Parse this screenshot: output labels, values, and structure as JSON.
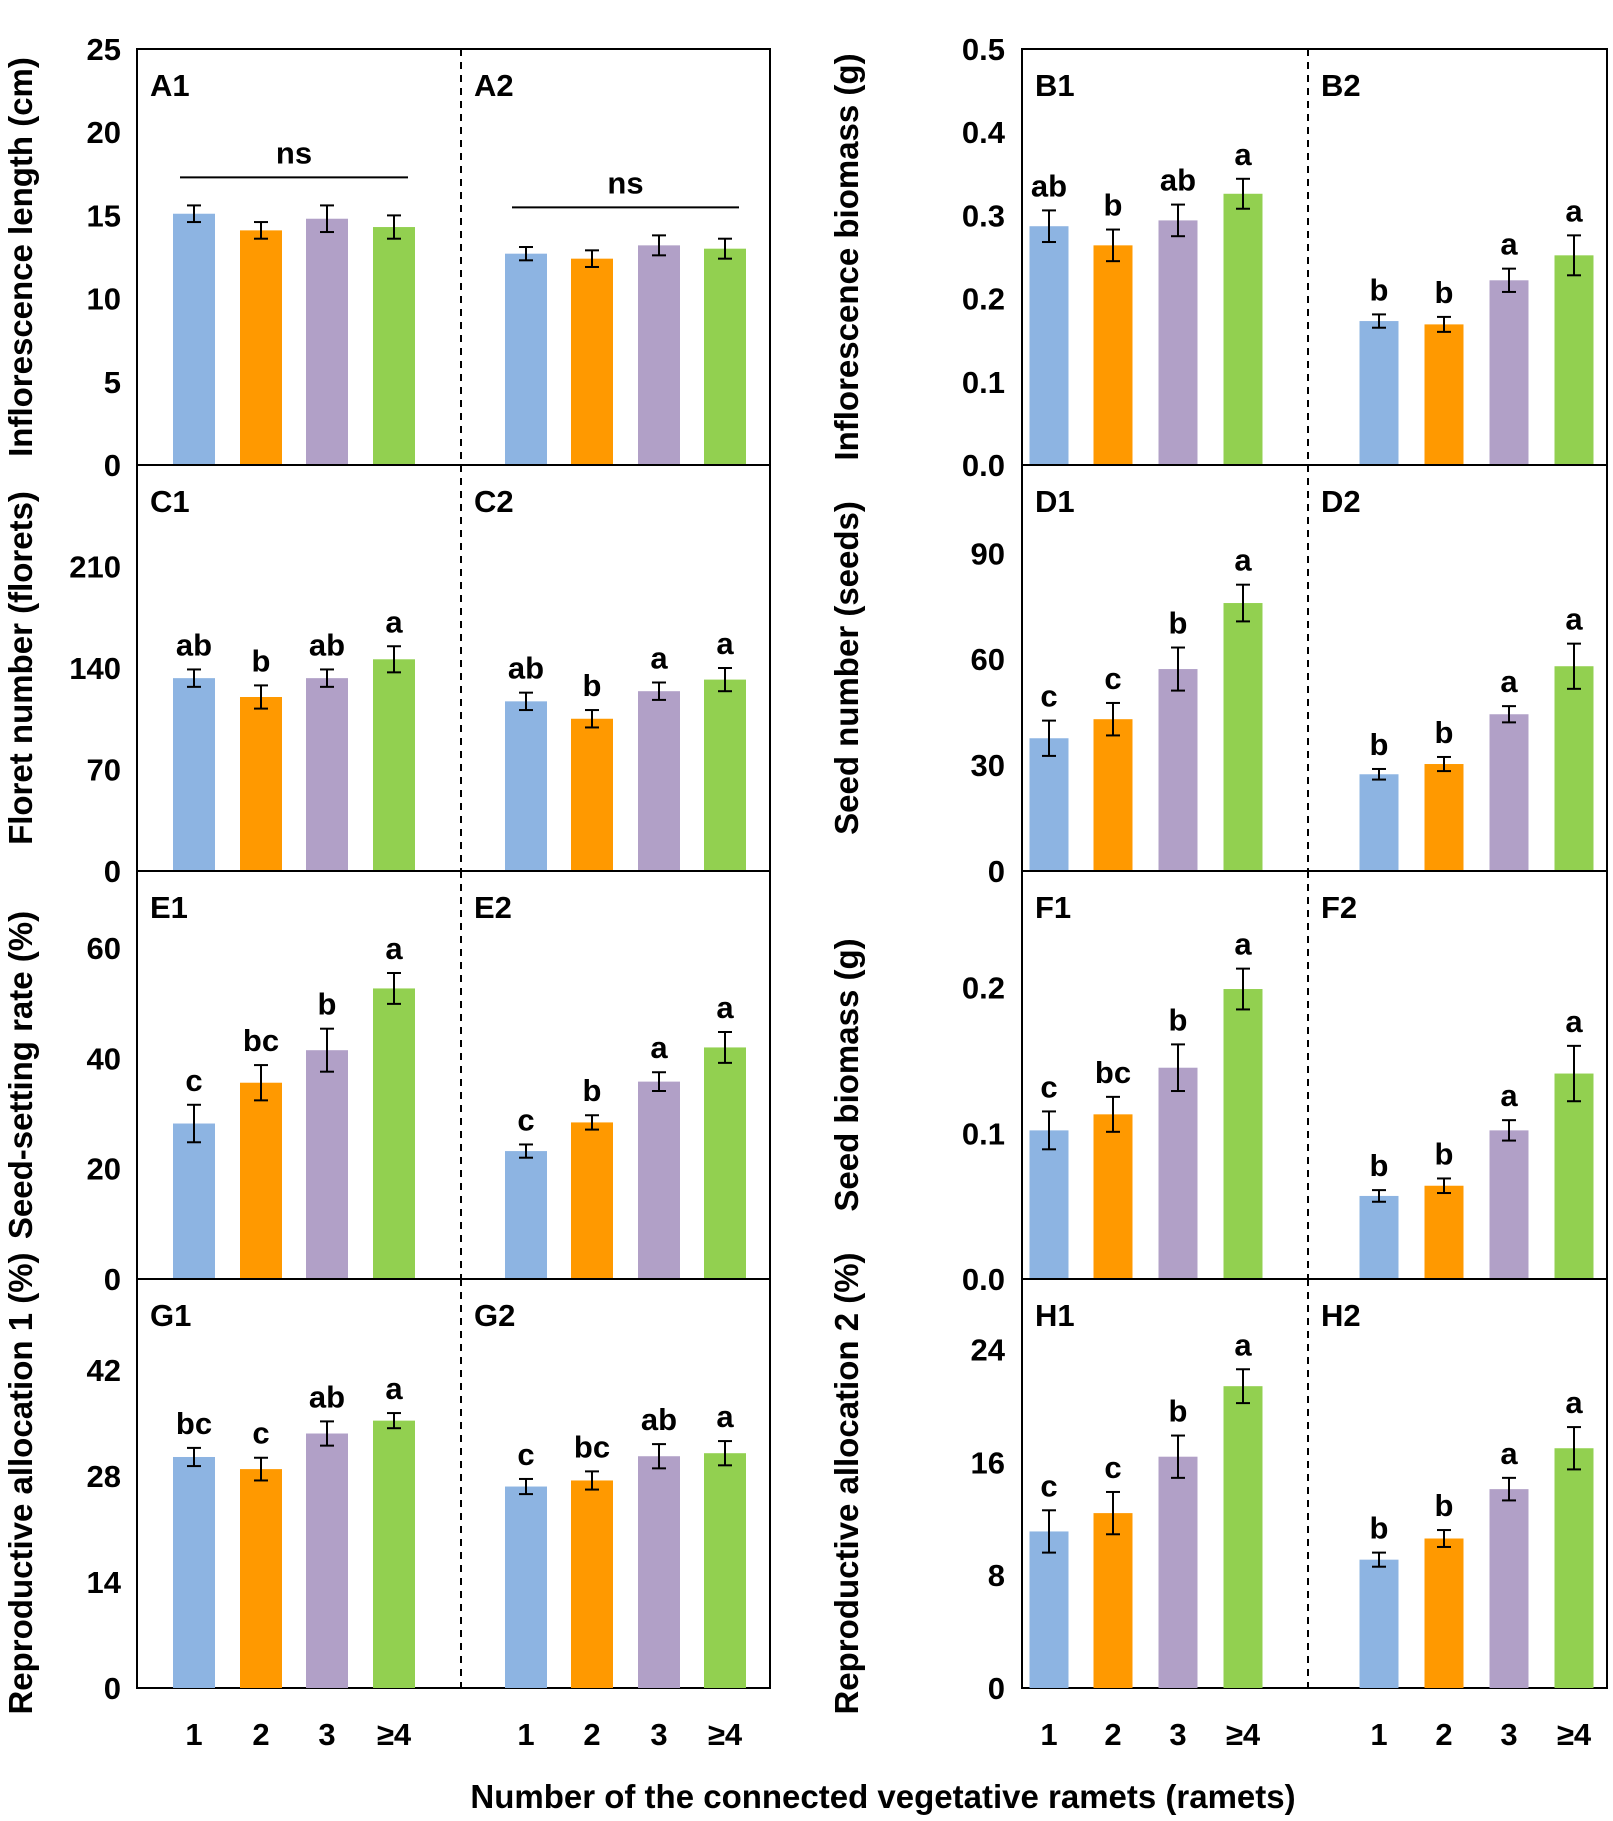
{
  "figure": {
    "xlabel": "Number of the connected vegetative ramets (ramets)",
    "categories": [
      "1",
      "2",
      "3",
      "≥4"
    ],
    "colors": [
      "#8DB4E2",
      "#FF9900",
      "#B1A0C7",
      "#92D050"
    ]
  },
  "chart_data": [
    {
      "type": "bar",
      "ylabel": "Inflorescence length (cm)",
      "ylim": [
        0,
        25
      ],
      "yticks": [
        "0",
        "5",
        "10",
        "15",
        "20",
        "25"
      ],
      "groups": [
        {
          "label": "A1",
          "categories": [
            "1",
            "2",
            "3",
            "≥4"
          ],
          "values": [
            15.1,
            14.1,
            14.8,
            14.3
          ],
          "errors": [
            0.5,
            0.5,
            0.8,
            0.7
          ],
          "bracket_label": "ns"
        },
        {
          "label": "A2",
          "categories": [
            "1",
            "2",
            "3",
            "≥4"
          ],
          "values": [
            12.7,
            12.4,
            13.2,
            13.0
          ],
          "errors": [
            0.4,
            0.5,
            0.6,
            0.6
          ],
          "bracket_label": "ns"
        }
      ]
    },
    {
      "type": "bar",
      "ylabel": "Inflorescence biomass (g)",
      "ylim": [
        0,
        0.5
      ],
      "yticks": [
        "0.0",
        "0.1",
        "0.2",
        "0.3",
        "0.4",
        "0.5"
      ],
      "groups": [
        {
          "label": "B1",
          "categories": [
            "1",
            "2",
            "3",
            "≥4"
          ],
          "values": [
            0.287,
            0.264,
            0.294,
            0.326
          ],
          "errors": [
            0.019,
            0.019,
            0.019,
            0.018
          ],
          "letters": [
            "ab",
            "b",
            "ab",
            "a"
          ]
        },
        {
          "label": "B2",
          "categories": [
            "1",
            "2",
            "3",
            "≥4"
          ],
          "values": [
            0.173,
            0.169,
            0.222,
            0.252
          ],
          "errors": [
            0.008,
            0.009,
            0.014,
            0.024
          ],
          "letters": [
            "b",
            "b",
            "a",
            "a"
          ]
        }
      ]
    },
    {
      "type": "bar",
      "ylabel": "Floret number (florets)",
      "ylim": [
        0,
        280
      ],
      "yticks": [
        "0",
        "70",
        "140",
        "210"
      ],
      "groups": [
        {
          "label": "C1",
          "categories": [
            "1",
            "2",
            "3",
            "≥4"
          ],
          "values": [
            133,
            120,
            133,
            146
          ],
          "errors": [
            6,
            8,
            6,
            9
          ],
          "letters": [
            "ab",
            "b",
            "ab",
            "a"
          ]
        },
        {
          "label": "C2",
          "categories": [
            "1",
            "2",
            "3",
            "≥4"
          ],
          "values": [
            117,
            105,
            124,
            132
          ],
          "errors": [
            6,
            6,
            6,
            8
          ],
          "letters": [
            "ab",
            "b",
            "a",
            "a"
          ]
        }
      ]
    },
    {
      "type": "bar",
      "ylabel": "Seed number (seeds)",
      "ylim": [
        0,
        115
      ],
      "yticks": [
        "0",
        "30",
        "60",
        "90"
      ],
      "groups": [
        {
          "label": "D1",
          "categories": [
            "1",
            "2",
            "3",
            "≥4"
          ],
          "values": [
            37.6,
            43.0,
            57.2,
            75.9
          ],
          "errors": [
            5.0,
            4.6,
            6.1,
            5.2
          ],
          "letters": [
            "c",
            "c",
            "b",
            "a"
          ]
        },
        {
          "label": "D2",
          "categories": [
            "1",
            "2",
            "3",
            "≥4"
          ],
          "values": [
            27.4,
            30.3,
            44.4,
            58.0
          ],
          "errors": [
            1.5,
            2.0,
            2.3,
            6.4
          ],
          "letters": [
            "b",
            "b",
            "a",
            "a"
          ]
        }
      ]
    },
    {
      "type": "bar",
      "ylabel": "Seed-setting rate (%)",
      "ylim": [
        0,
        74
      ],
      "yticks": [
        "0",
        "20",
        "40",
        "60"
      ],
      "groups": [
        {
          "label": "E1",
          "categories": [
            "1",
            "2",
            "3",
            "≥4"
          ],
          "values": [
            28.2,
            35.6,
            41.5,
            52.7
          ],
          "errors": [
            3.4,
            3.2,
            3.9,
            2.8
          ],
          "letters": [
            "c",
            "bc",
            "b",
            "a"
          ]
        },
        {
          "label": "E2",
          "categories": [
            "1",
            "2",
            "3",
            "≥4"
          ],
          "values": [
            23.2,
            28.4,
            35.8,
            42.0
          ],
          "errors": [
            1.2,
            1.3,
            1.7,
            2.8
          ],
          "letters": [
            "c",
            "b",
            "a",
            "a"
          ]
        }
      ]
    },
    {
      "type": "bar",
      "ylabel": "Seed biomass (g)",
      "ylim": [
        0,
        0.28
      ],
      "yticks": [
        "0.0",
        "0.1",
        "0.2"
      ],
      "groups": [
        {
          "label": "F1",
          "categories": [
            "1",
            "2",
            "3",
            "≥4"
          ],
          "values": [
            0.102,
            0.113,
            0.145,
            0.199
          ],
          "errors": [
            0.013,
            0.012,
            0.016,
            0.014
          ],
          "letters": [
            "c",
            "bc",
            "b",
            "a"
          ]
        },
        {
          "label": "F2",
          "categories": [
            "1",
            "2",
            "3",
            "≥4"
          ],
          "values": [
            0.057,
            0.064,
            0.102,
            0.141
          ],
          "errors": [
            0.004,
            0.005,
            0.007,
            0.019
          ],
          "letters": [
            "b",
            "b",
            "a",
            "a"
          ]
        }
      ]
    },
    {
      "type": "bar",
      "ylabel": "Reproductive allocation 1 (%)",
      "ylim": [
        0,
        54
      ],
      "yticks": [
        "0",
        "14",
        "28",
        "42"
      ],
      "groups": [
        {
          "label": "G1",
          "categories": [
            "1",
            "2",
            "3",
            "≥4"
          ],
          "values": [
            30.5,
            28.9,
            33.6,
            35.3
          ],
          "errors": [
            1.2,
            1.5,
            1.6,
            1.0
          ],
          "letters": [
            "bc",
            "c",
            "ab",
            "a"
          ]
        },
        {
          "label": "G2",
          "categories": [
            "1",
            "2",
            "3",
            "≥4"
          ],
          "values": [
            26.6,
            27.4,
            30.6,
            31.0
          ],
          "errors": [
            1.0,
            1.2,
            1.6,
            1.6
          ],
          "letters": [
            "c",
            "bc",
            "ab",
            "a"
          ]
        }
      ]
    },
    {
      "type": "bar",
      "ylabel": "Reproductive allocation 2 (%)",
      "ylim": [
        0,
        29
      ],
      "yticks": [
        "0",
        "8",
        "16",
        "24"
      ],
      "groups": [
        {
          "label": "H1",
          "categories": [
            "1",
            "2",
            "3",
            "≥4"
          ],
          "values": [
            11.1,
            12.4,
            16.4,
            21.4
          ],
          "errors": [
            1.5,
            1.5,
            1.5,
            1.2
          ],
          "letters": [
            "c",
            "c",
            "b",
            "a"
          ]
        },
        {
          "label": "H2",
          "categories": [
            "1",
            "2",
            "3",
            "≥4"
          ],
          "values": [
            9.1,
            10.6,
            14.1,
            17.0
          ],
          "errors": [
            0.5,
            0.6,
            0.8,
            1.5
          ],
          "letters": [
            "b",
            "b",
            "a",
            "a"
          ]
        }
      ]
    }
  ]
}
